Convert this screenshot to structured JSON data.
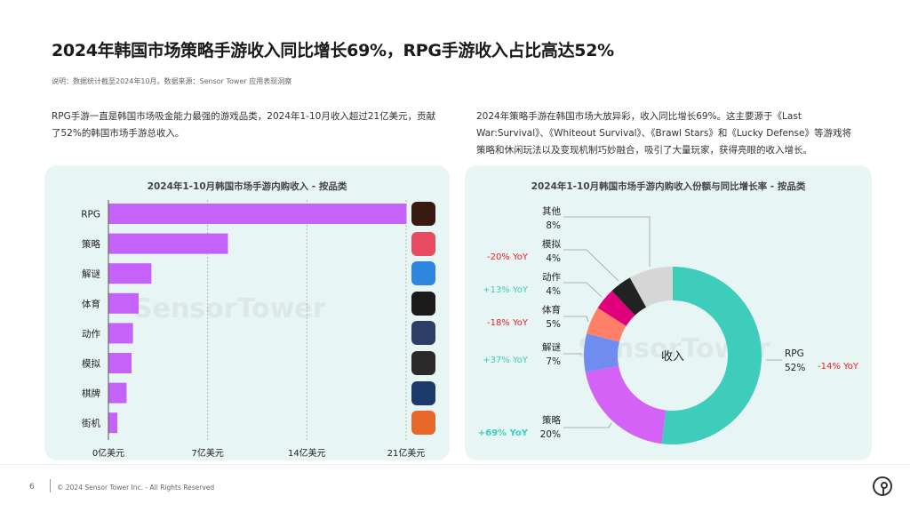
{
  "header": {
    "title": "2024年韩国市场策略手游收入同比增长69%，RPG手游收入占比高达52%",
    "note": "说明：数据统计截至2024年10月。数据来源：Sensor Tower 应用表现洞察"
  },
  "paragraphs": {
    "left": "RPG手游一直是韩国市场吸金能力最强的游戏品类，2024年1-10月收入超过21亿美元，贡献了52%的韩国市场手游总收入。",
    "right": "2024年策略手游在韩国市场大放异彩，收入同比增长69%。这主要源于《Last War:Survival》、《Whiteout Survival》、《Brawl Stars》和《Lucky Defense》等游戏将策略和休闲玩法以及变现机制巧妙融合，吸引了大量玩家，获得亮眼的收入增长。"
  },
  "watermark": "SensorTower",
  "chart_data": [
    {
      "type": "bar",
      "orientation": "horizontal",
      "title": "2024年1-10月韩国市场手游内购收入 - 按品类",
      "categories": [
        "RPG",
        "策略",
        "解谜",
        "体育",
        "动作",
        "模拟",
        "棋牌",
        "街机"
      ],
      "values": [
        21.0,
        8.4,
        3.0,
        2.1,
        1.7,
        1.6,
        1.25,
        0.6
      ],
      "unit": "亿美元",
      "xlim": [
        0,
        21
      ],
      "xticks": [
        "0亿美元",
        "7亿美元",
        "14亿美元",
        "21亿美元"
      ],
      "xtick_values": [
        0,
        7,
        14,
        21
      ],
      "grid": "vertical dashed",
      "bar_color": "#c462f9",
      "app_icon_colors": [
        "#3a1a10",
        "#e84a5f",
        "#2e86de",
        "#1a1a1a",
        "#2c3e66",
        "#2a2a2a",
        "#1b3a6b",
        "#e8682a"
      ]
    },
    {
      "type": "pie",
      "donut": true,
      "title": "2024年1-10月韩国市场手游内购收入份额与同比增长率 - 按品类",
      "center_label": "收入",
      "slices": [
        {
          "label": "RPG",
          "value": 52,
          "pct": "52%",
          "yoy": "-14% YoY",
          "yoy_color": "#e8202a",
          "color": "#3ecdbb"
        },
        {
          "label": "策略",
          "value": 20,
          "pct": "20%",
          "yoy": "+69% YoY",
          "yoy_color": "#3ecdbb",
          "color": "#d462f7"
        },
        {
          "label": "解谜",
          "value": 7,
          "pct": "7%",
          "yoy": "+37% YoY",
          "yoy_color": "#3ecdbb",
          "color": "#6f8cf0"
        },
        {
          "label": "体育",
          "value": 5,
          "pct": "5%",
          "yoy": "-18% YoY",
          "yoy_color": "#e8202a",
          "color": "#ff8066"
        },
        {
          "label": "动作",
          "value": 4,
          "pct": "4%",
          "yoy": "+13% YoY",
          "yoy_color": "#3ecdbb",
          "color": "#e0007a"
        },
        {
          "label": "模拟",
          "value": 4,
          "pct": "4%",
          "yoy": "-20% YoY",
          "yoy_color": "#e8202a",
          "color": "#222222"
        },
        {
          "label": "其他",
          "value": 8,
          "pct": "8%",
          "yoy": "",
          "color": "#d6d6d6"
        }
      ]
    }
  ],
  "footer": {
    "page": "6",
    "copyright": "© 2024 Sensor Tower Inc. - All Rights Reserved"
  }
}
